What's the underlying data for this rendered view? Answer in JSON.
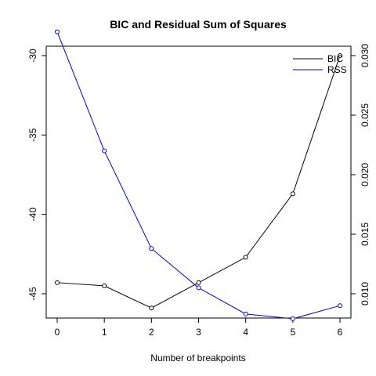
{
  "chart_data": {
    "type": "line",
    "title": "BIC and Residual Sum of Squares",
    "xlabel": "Number of breakpoints",
    "x": [
      0,
      1,
      2,
      3,
      4,
      5,
      6
    ],
    "xlim": [
      0,
      6
    ],
    "x_ticks": [
      0,
      1,
      2,
      3,
      4,
      5,
      6
    ],
    "y_left": {
      "ticks": [
        -30,
        -35,
        -40,
        -45
      ],
      "range": [
        -46,
        -30
      ]
    },
    "y_right": {
      "ticks": [
        0.01,
        0.015,
        0.02,
        0.025,
        0.03
      ],
      "range": [
        0.008,
        0.032
      ]
    },
    "grid": false,
    "legend_position": "top-right",
    "series": [
      {
        "name": "BIC",
        "axis": "left",
        "color": "#000000",
        "values": [
          -44.3,
          -44.5,
          -45.9,
          -44.3,
          -42.7,
          -38.7,
          -30.0
        ]
      },
      {
        "name": "RSS",
        "axis": "right",
        "color": "#0000cc",
        "values": [
          0.032,
          0.022,
          0.0138,
          0.0105,
          0.0083,
          0.0079,
          0.009
        ]
      }
    ]
  }
}
